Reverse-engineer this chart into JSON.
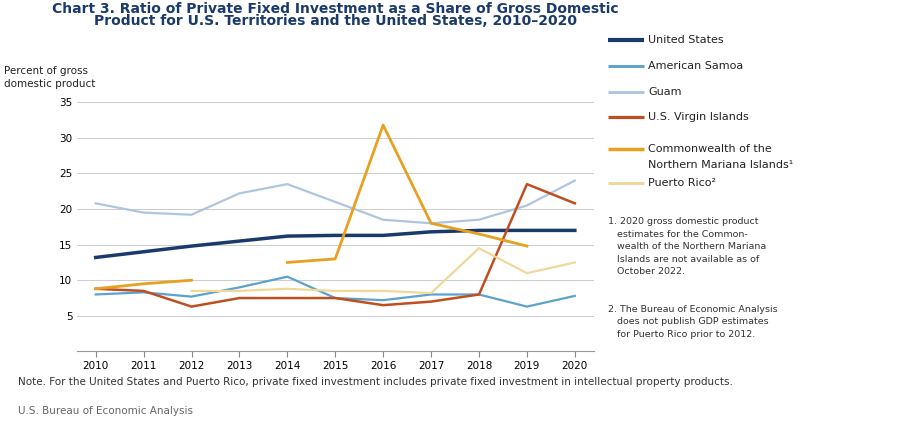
{
  "title_line1": "Chart 3. Ratio of Private Fixed Investment as a Share of Gross Domestic",
  "title_line2": "Product for U.S. Territories and the United States, 2010–2020",
  "ylabel_line1": "Percent of gross",
  "ylabel_line2": "domestic product",
  "years": [
    2010,
    2011,
    2012,
    2013,
    2014,
    2015,
    2016,
    2017,
    2018,
    2019,
    2020
  ],
  "united_states": [
    13.2,
    14.0,
    14.8,
    15.5,
    16.2,
    16.3,
    16.3,
    16.8,
    17.0,
    17.0,
    17.0
  ],
  "american_samoa": [
    8.0,
    8.3,
    7.7,
    9.0,
    10.5,
    7.5,
    7.2,
    8.0,
    8.0,
    6.3,
    7.8
  ],
  "guam": [
    20.8,
    19.5,
    19.2,
    22.2,
    23.5,
    21.0,
    18.5,
    18.0,
    18.5,
    20.5,
    24.0
  ],
  "us_virgin_islands": [
    8.8,
    8.5,
    6.3,
    7.5,
    7.5,
    7.5,
    6.5,
    7.0,
    8.0,
    23.5,
    20.8
  ],
  "cnmi": [
    8.8,
    9.5,
    10.0,
    null,
    12.5,
    13.0,
    31.8,
    18.0,
    16.5,
    14.8,
    null
  ],
  "puerto_rico": [
    null,
    null,
    8.5,
    8.5,
    8.8,
    8.5,
    8.5,
    8.2,
    14.5,
    11.0,
    12.5
  ],
  "colors": {
    "united_states": "#1a3a6b",
    "american_samoa": "#5ba3cc",
    "guam": "#aec6dd",
    "us_virgin_islands": "#bf4f1f",
    "cnmi": "#e8a020",
    "puerto_rico": "#f0d898"
  },
  "linewidths": {
    "united_states": 2.5,
    "american_samoa": 1.6,
    "guam": 1.6,
    "us_virgin_islands": 1.8,
    "cnmi": 2.0,
    "puerto_rico": 1.6
  },
  "ylim": [
    0,
    35
  ],
  "yticks": [
    0,
    5,
    10,
    15,
    20,
    25,
    30,
    35
  ],
  "note": "Note. For the United States and Puerto Rico, private fixed investment includes private fixed investment in intellectual property products.",
  "source": "U.S. Bureau of Economic Analysis"
}
